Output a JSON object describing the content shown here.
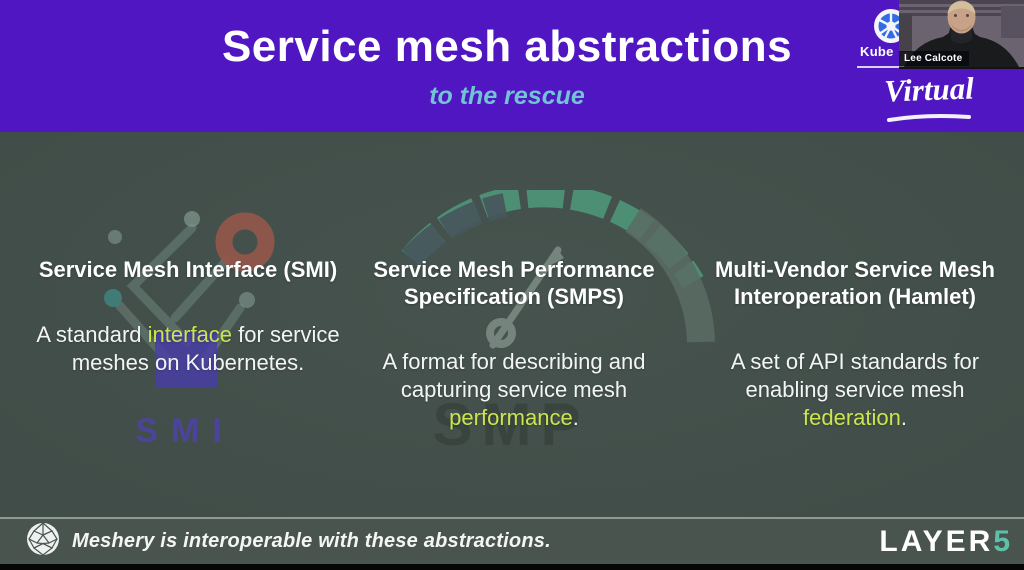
{
  "banner": {
    "title": "Service mesh abstractions",
    "subtitle": "to the rescue"
  },
  "event_badge": {
    "kube_label": "Kube",
    "virtual_label": "Virtual",
    "kubernetes_icon": "kubernetes-wheel",
    "kubernetes_blue": "#326ce5"
  },
  "webcam": {
    "name_label": "Lee Calcote"
  },
  "columns": [
    {
      "heading": "Service Mesh Interface (SMI)",
      "body_parts": [
        {
          "text": "A standard "
        },
        {
          "text": "interface",
          "highlight": true
        },
        {
          "text": " for service meshes on Kubernetes."
        }
      ],
      "watermark_label": "SMI"
    },
    {
      "heading": "Service Mesh Performance Specification (SMPS)",
      "body_parts": [
        {
          "text": "A format for describing and capturing service mesh "
        },
        {
          "text": "performance",
          "highlight": true
        },
        {
          "text": "."
        }
      ],
      "watermark_label": "SMP"
    },
    {
      "heading": "Multi-Vendor Service Mesh Interoperation (Hamlet)",
      "body_parts": [
        {
          "text": "A set of API standards for enabling service mesh "
        },
        {
          "text": "federation",
          "highlight": true
        },
        {
          "text": "."
        }
      ]
    }
  ],
  "footer": {
    "message": "Meshery is interoperable with these abstractions.",
    "brand_layer": "LAYER",
    "brand_five": "5",
    "meshery_icon": "meshery-polygon-sphere",
    "layer5_icon": "layer5-logo"
  },
  "colors": {
    "banner_bg": "#4f16c2",
    "subtitle": "#72c3d4",
    "highlight": "#cbe54d",
    "brand_teal": "#5fc0aa",
    "slide_bg": "#43504b"
  }
}
